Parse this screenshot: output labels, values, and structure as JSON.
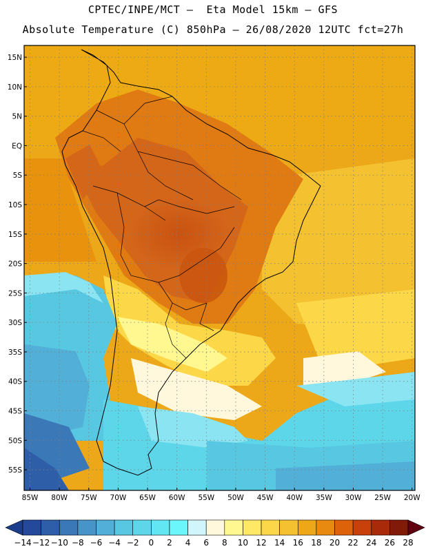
{
  "header": {
    "title_line1": "CPTEC/INPE/MCT –  Eta Model 15km – GFS",
    "title_line2": "Absolute Temperature (C) 850hPa – 26/08/2020 12UTC fct=27h"
  },
  "map": {
    "lon_range": [
      -86,
      -19.5
    ],
    "lat_range": [
      -58.5,
      17
    ],
    "lat_labels": [
      "15N",
      "10N",
      "5N",
      "EQ",
      "5S",
      "10S",
      "15S",
      "20S",
      "25S",
      "30S",
      "35S",
      "40S",
      "45S",
      "50S",
      "55S"
    ],
    "lat_values": [
      15,
      10,
      5,
      0,
      -5,
      -10,
      -15,
      -20,
      -25,
      -30,
      -35,
      -40,
      -45,
      -50,
      -55
    ],
    "lon_labels": [
      "85W",
      "80W",
      "75W",
      "70W",
      "65W",
      "60W",
      "55W",
      "50W",
      "45W",
      "40W",
      "35W",
      "30W",
      "25W",
      "20W"
    ],
    "lon_values": [
      -85,
      -80,
      -75,
      -70,
      -65,
      -60,
      -55,
      -50,
      -45,
      -40,
      -35,
      -30,
      -25,
      -20
    ],
    "gridlines": "dotted"
  },
  "colorbar": {
    "labels": [
      "-14",
      "-12",
      "-10",
      "-8",
      "-6",
      "-4",
      "-2",
      "0",
      "2",
      "4",
      "6",
      "8",
      "10",
      "12",
      "14",
      "16",
      "18",
      "20",
      "22",
      "24",
      "26",
      "28"
    ],
    "colors": [
      "#1c3c8c",
      "#24489a",
      "#2e5ea8",
      "#3a78b8",
      "#4794c8",
      "#52b0d8",
      "#58c8e2",
      "#5ed6ea",
      "#62e6f2",
      "#6af6fa",
      "#d0f6fc",
      "#fff8dc",
      "#fff890",
      "#ffe866",
      "#fcd848",
      "#f4c230",
      "#eca818",
      "#e88a10",
      "#de620a",
      "#c8400a",
      "#a82a0a",
      "#821a0a",
      "#600010"
    ]
  }
}
